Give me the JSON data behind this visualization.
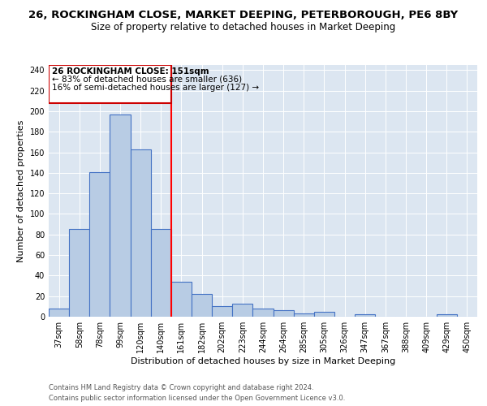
{
  "title": "26, ROCKINGHAM CLOSE, MARKET DEEPING, PETERBOROUGH, PE6 8BY",
  "subtitle": "Size of property relative to detached houses in Market Deeping",
  "xlabel": "Distribution of detached houses by size in Market Deeping",
  "ylabel": "Number of detached properties",
  "categories": [
    "37sqm",
    "58sqm",
    "78sqm",
    "99sqm",
    "120sqm",
    "140sqm",
    "161sqm",
    "182sqm",
    "202sqm",
    "223sqm",
    "244sqm",
    "264sqm",
    "285sqm",
    "305sqm",
    "326sqm",
    "347sqm",
    "367sqm",
    "388sqm",
    "409sqm",
    "429sqm",
    "450sqm"
  ],
  "values": [
    8,
    85,
    141,
    197,
    163,
    85,
    34,
    22,
    10,
    13,
    8,
    6,
    3,
    5,
    0,
    2,
    0,
    0,
    0,
    2,
    0
  ],
  "bar_color": "#b8cce4",
  "bar_edge_color": "#4472c4",
  "annotation_line1": "26 ROCKINGHAM CLOSE: 151sqm",
  "annotation_line2": "← 83% of detached houses are smaller (636)",
  "annotation_line3": "16% of semi-detached houses are larger (127) →",
  "box_color": "#cc0000",
  "ylim": [
    0,
    245
  ],
  "yticks": [
    0,
    20,
    40,
    60,
    80,
    100,
    120,
    140,
    160,
    180,
    200,
    220,
    240
  ],
  "footnote1": "Contains HM Land Registry data © Crown copyright and database right 2024.",
  "footnote2": "Contains public sector information licensed under the Open Government Licence v3.0.",
  "background_color": "#dce6f1",
  "title_fontsize": 9.5,
  "subtitle_fontsize": 8.5,
  "axis_label_fontsize": 8,
  "tick_fontsize": 7,
  "annotation_fontsize": 7.5,
  "footnote_fontsize": 6.0
}
